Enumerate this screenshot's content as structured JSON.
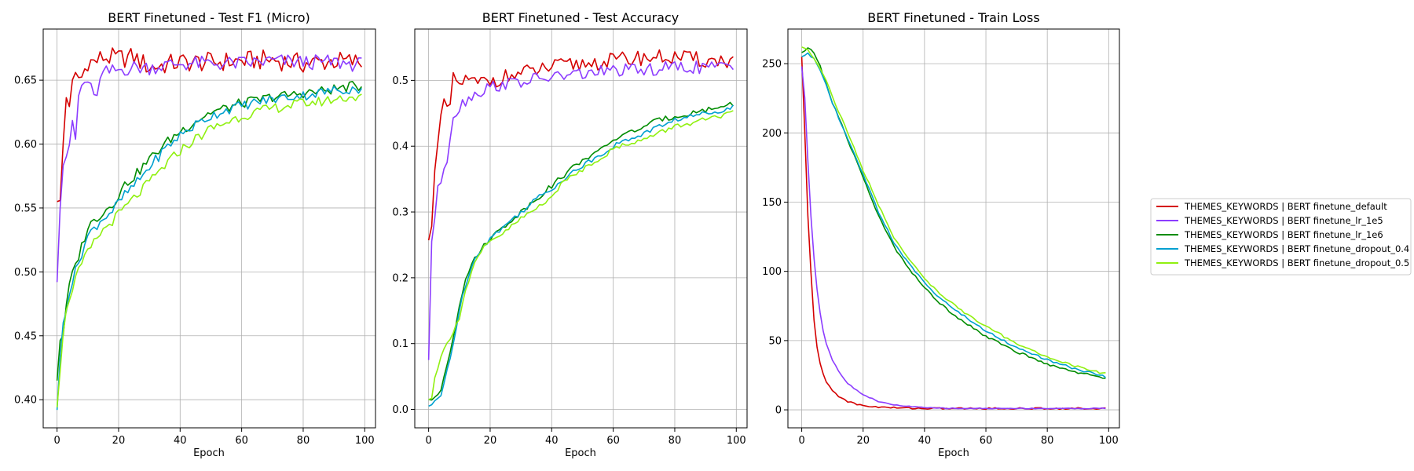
{
  "figure": {
    "legend_placement": "right of charts",
    "legend_entries": [
      "THEMES_KEYWORDS | BERT finetune_default",
      "THEMES_KEYWORDS | BERT finetune_lr_1e5",
      "THEMES_KEYWORDS | BERT finetune_lr_1e6",
      "THEMES_KEYWORDS | BERT finetune_dropout_0.4",
      "THEMES_KEYWORDS | BERT finetune_dropout_0.5"
    ],
    "colors": [
      "#d40000",
      "#8c3cff",
      "#008c00",
      "#00a0d0",
      "#90f010"
    ]
  },
  "chart_data": [
    {
      "type": "line",
      "title": "BERT Finetuned - Test F1 (Micro)",
      "xlabel": "Epoch",
      "ylabel": "",
      "grid": true,
      "xlim": [
        -4.5,
        103.5
      ],
      "ylim": [
        0.378,
        0.69
      ],
      "xticks": [
        0,
        20,
        40,
        60,
        80,
        100
      ],
      "yticks": [
        0.4,
        0.45,
        0.5,
        0.55,
        0.6,
        0.65
      ],
      "ytick_labels": [
        "0.40",
        "0.45",
        "0.50",
        "0.55",
        "0.60",
        "0.65"
      ],
      "series": [
        {
          "name": "THEMES_KEYWORDS | BERT finetune_default",
          "color": "#d40000",
          "x": [
            0,
            1,
            2,
            3,
            4,
            5,
            6,
            8,
            10,
            12,
            15,
            20,
            25,
            30,
            40,
            50,
            60,
            70,
            80,
            90,
            99
          ],
          "y": [
            0.555,
            0.552,
            0.6,
            0.637,
            0.633,
            0.645,
            0.652,
            0.652,
            0.665,
            0.664,
            0.668,
            0.667,
            0.668,
            0.66,
            0.664,
            0.664,
            0.665,
            0.666,
            0.663,
            0.665,
            0.664
          ],
          "noise": 0.008
        },
        {
          "name": "THEMES_KEYWORDS | BERT finetune_lr_1e5",
          "color": "#8c3cff",
          "x": [
            0,
            1,
            2,
            3,
            4,
            5,
            6,
            7,
            8,
            10,
            12,
            15,
            20,
            25,
            30,
            40,
            50,
            60,
            70,
            80,
            90,
            99
          ],
          "y": [
            0.492,
            0.555,
            0.585,
            0.592,
            0.594,
            0.618,
            0.603,
            0.637,
            0.645,
            0.65,
            0.635,
            0.655,
            0.658,
            0.66,
            0.66,
            0.663,
            0.663,
            0.663,
            0.665,
            0.664,
            0.664,
            0.662
          ],
          "noise": 0.006
        },
        {
          "name": "THEMES_KEYWORDS | BERT finetune_lr_1e6",
          "color": "#008c00",
          "x": [
            0,
            1,
            2,
            4,
            6,
            8,
            10,
            14,
            18,
            22,
            26,
            30,
            35,
            40,
            45,
            50,
            55,
            60,
            65,
            70,
            75,
            80,
            85,
            90,
            95,
            99
          ],
          "y": [
            0.415,
            0.447,
            0.452,
            0.49,
            0.505,
            0.52,
            0.535,
            0.545,
            0.553,
            0.568,
            0.577,
            0.588,
            0.6,
            0.61,
            0.618,
            0.625,
            0.628,
            0.632,
            0.634,
            0.637,
            0.638,
            0.64,
            0.641,
            0.643,
            0.645,
            0.645
          ],
          "noise": 0.004
        },
        {
          "name": "THEMES_KEYWORDS | BERT finetune_dropout_0.4",
          "color": "#00a0d0",
          "x": [
            0,
            1,
            2,
            4,
            6,
            8,
            10,
            14,
            18,
            22,
            26,
            30,
            35,
            40,
            45,
            50,
            55,
            60,
            65,
            70,
            75,
            80,
            85,
            90,
            95,
            99
          ],
          "y": [
            0.392,
            0.43,
            0.46,
            0.485,
            0.5,
            0.515,
            0.528,
            0.54,
            0.548,
            0.56,
            0.57,
            0.582,
            0.596,
            0.607,
            0.615,
            0.622,
            0.627,
            0.63,
            0.633,
            0.635,
            0.637,
            0.638,
            0.64,
            0.642,
            0.643,
            0.643
          ],
          "noise": 0.004
        },
        {
          "name": "THEMES_KEYWORDS | BERT finetune_dropout_0.5",
          "color": "#90f010",
          "x": [
            0,
            1,
            2,
            4,
            6,
            8,
            10,
            14,
            18,
            22,
            26,
            30,
            35,
            40,
            45,
            50,
            55,
            60,
            65,
            70,
            75,
            80,
            85,
            90,
            95,
            99
          ],
          "y": [
            0.394,
            0.425,
            0.455,
            0.48,
            0.495,
            0.505,
            0.515,
            0.53,
            0.54,
            0.55,
            0.56,
            0.57,
            0.583,
            0.595,
            0.604,
            0.612,
            0.617,
            0.622,
            0.625,
            0.628,
            0.63,
            0.632,
            0.633,
            0.635,
            0.637,
            0.636
          ],
          "noise": 0.004
        }
      ]
    },
    {
      "type": "line",
      "title": "BERT Finetuned - Test Accuracy",
      "xlabel": "Epoch",
      "ylabel": "",
      "grid": true,
      "xlim": [
        -4.5,
        103.5
      ],
      "ylim": [
        -0.028,
        0.578
      ],
      "xticks": [
        0,
        20,
        40,
        60,
        80,
        100
      ],
      "yticks": [
        0.0,
        0.1,
        0.2,
        0.3,
        0.4,
        0.5
      ],
      "ytick_labels": [
        "0.0",
        "0.1",
        "0.2",
        "0.3",
        "0.4",
        "0.5"
      ],
      "series": [
        {
          "name": "THEMES_KEYWORDS | BERT finetune_default",
          "color": "#d40000",
          "x": [
            0,
            1,
            2,
            3,
            4,
            5,
            6,
            7,
            8,
            10,
            12,
            15,
            20,
            25,
            30,
            40,
            50,
            60,
            70,
            80,
            90,
            99
          ],
          "y": [
            0.257,
            0.29,
            0.37,
            0.4,
            0.44,
            0.46,
            0.46,
            0.46,
            0.5,
            0.495,
            0.5,
            0.495,
            0.5,
            0.505,
            0.51,
            0.52,
            0.525,
            0.53,
            0.535,
            0.535,
            0.53,
            0.53
          ],
          "noise": 0.012
        },
        {
          "name": "THEMES_KEYWORDS | BERT finetune_lr_1e5",
          "color": "#8c3cff",
          "x": [
            0,
            1,
            2,
            3,
            4,
            5,
            6,
            7,
            8,
            10,
            12,
            15,
            20,
            25,
            30,
            40,
            50,
            60,
            70,
            80,
            90,
            99
          ],
          "y": [
            0.075,
            0.26,
            0.29,
            0.33,
            0.35,
            0.37,
            0.38,
            0.42,
            0.445,
            0.46,
            0.47,
            0.48,
            0.49,
            0.495,
            0.498,
            0.505,
            0.51,
            0.515,
            0.515,
            0.52,
            0.52,
            0.52
          ],
          "noise": 0.01
        },
        {
          "name": "THEMES_KEYWORDS | BERT finetune_lr_1e6",
          "color": "#008c00",
          "x": [
            0,
            1,
            2,
            4,
            6,
            8,
            10,
            12,
            14,
            16,
            18,
            20,
            25,
            30,
            35,
            40,
            45,
            50,
            55,
            60,
            65,
            70,
            75,
            80,
            85,
            90,
            95,
            99
          ],
          "y": [
            0.015,
            0.013,
            0.015,
            0.03,
            0.07,
            0.11,
            0.16,
            0.2,
            0.22,
            0.235,
            0.25,
            0.26,
            0.28,
            0.3,
            0.32,
            0.34,
            0.36,
            0.38,
            0.39,
            0.41,
            0.42,
            0.43,
            0.44,
            0.445,
            0.45,
            0.455,
            0.46,
            0.465
          ],
          "noise": 0.004
        },
        {
          "name": "THEMES_KEYWORDS | BERT finetune_dropout_0.4",
          "color": "#00a0d0",
          "x": [
            0,
            1,
            2,
            4,
            6,
            8,
            10,
            12,
            14,
            16,
            18,
            20,
            25,
            30,
            35,
            40,
            45,
            50,
            55,
            60,
            65,
            70,
            75,
            80,
            85,
            90,
            95,
            99
          ],
          "y": [
            0.005,
            0.007,
            0.01,
            0.02,
            0.06,
            0.1,
            0.15,
            0.19,
            0.22,
            0.235,
            0.25,
            0.26,
            0.28,
            0.3,
            0.32,
            0.335,
            0.355,
            0.37,
            0.385,
            0.4,
            0.41,
            0.42,
            0.43,
            0.44,
            0.445,
            0.45,
            0.455,
            0.46
          ],
          "noise": 0.004
        },
        {
          "name": "THEMES_KEYWORDS | BERT finetune_dropout_0.5",
          "color": "#90f010",
          "x": [
            0,
            1,
            2,
            4,
            6,
            8,
            10,
            12,
            14,
            16,
            18,
            20,
            25,
            30,
            35,
            40,
            45,
            50,
            55,
            60,
            65,
            70,
            75,
            80,
            85,
            90,
            95,
            99
          ],
          "y": [
            0.015,
            0.02,
            0.05,
            0.08,
            0.1,
            0.12,
            0.14,
            0.18,
            0.21,
            0.23,
            0.245,
            0.255,
            0.27,
            0.29,
            0.305,
            0.325,
            0.35,
            0.365,
            0.38,
            0.395,
            0.405,
            0.41,
            0.42,
            0.43,
            0.435,
            0.44,
            0.445,
            0.45
          ],
          "noise": 0.004
        }
      ]
    },
    {
      "type": "line",
      "title": "BERT Finetuned - Train Loss",
      "xlabel": "Epoch",
      "ylabel": "",
      "grid": true,
      "xlim": [
        -4.5,
        103.5
      ],
      "ylim": [
        -13,
        275
      ],
      "xticks": [
        0,
        20,
        40,
        60,
        80,
        100
      ],
      "yticks": [
        0,
        50,
        100,
        150,
        200,
        250
      ],
      "ytick_labels": [
        "0",
        "50",
        "100",
        "150",
        "200",
        "250"
      ],
      "series": [
        {
          "name": "THEMES_KEYWORDS | BERT finetune_default",
          "color": "#d40000",
          "x": [
            0,
            1,
            2,
            3,
            4,
            5,
            6,
            7,
            8,
            10,
            12,
            15,
            18,
            20,
            25,
            30,
            40,
            50,
            60,
            70,
            80,
            90,
            99
          ],
          "y": [
            255,
            200,
            140,
            100,
            65,
            45,
            33,
            26,
            20,
            14,
            10,
            6,
            4,
            3,
            2,
            1.5,
            1,
            1,
            1,
            1,
            1,
            1,
            1
          ],
          "noise": 0.6
        },
        {
          "name": "THEMES_KEYWORDS | BERT finetune_lr_1e5",
          "color": "#8c3cff",
          "x": [
            0,
            1,
            2,
            3,
            4,
            5,
            6,
            7,
            8,
            10,
            12,
            15,
            18,
            20,
            25,
            30,
            40,
            50,
            60,
            70,
            80,
            90,
            99
          ],
          "y": [
            248,
            225,
            180,
            140,
            110,
            87,
            70,
            57,
            48,
            36,
            28,
            19,
            14,
            11,
            6,
            3.5,
            1.5,
            1,
            1,
            1,
            1,
            1,
            1
          ],
          "noise": 0.3
        },
        {
          "name": "THEMES_KEYWORDS | BERT finetune_lr_1e6",
          "color": "#008c00",
          "x": [
            0,
            2,
            4,
            6,
            8,
            10,
            15,
            20,
            25,
            30,
            35,
            40,
            45,
            50,
            60,
            70,
            80,
            90,
            99
          ],
          "y": [
            258,
            261,
            258,
            248,
            235,
            222,
            195,
            168,
            140,
            118,
            102,
            88,
            77,
            68,
            53,
            42,
            33,
            27,
            23
          ],
          "noise": 0.8
        },
        {
          "name": "THEMES_KEYWORDS | BERT finetune_dropout_0.4",
          "color": "#00a0d0",
          "x": [
            0,
            2,
            4,
            6,
            8,
            10,
            15,
            20,
            25,
            30,
            35,
            40,
            45,
            50,
            60,
            70,
            80,
            90,
            99
          ],
          "y": [
            255,
            257,
            254,
            246,
            235,
            222,
            195,
            170,
            143,
            121,
            105,
            92,
            81,
            72,
            57,
            45,
            36,
            29,
            24
          ],
          "noise": 0.8
        },
        {
          "name": "THEMES_KEYWORDS | BERT finetune_dropout_0.5",
          "color": "#90f010",
          "x": [
            0,
            2,
            4,
            6,
            8,
            10,
            15,
            20,
            25,
            30,
            35,
            40,
            45,
            50,
            60,
            70,
            80,
            90,
            99
          ],
          "y": [
            262,
            260,
            254,
            247,
            238,
            226,
            200,
            173,
            148,
            125,
            108,
            95,
            84,
            75,
            60,
            48,
            38,
            31,
            26
          ],
          "noise": 0.8
        }
      ]
    }
  ]
}
